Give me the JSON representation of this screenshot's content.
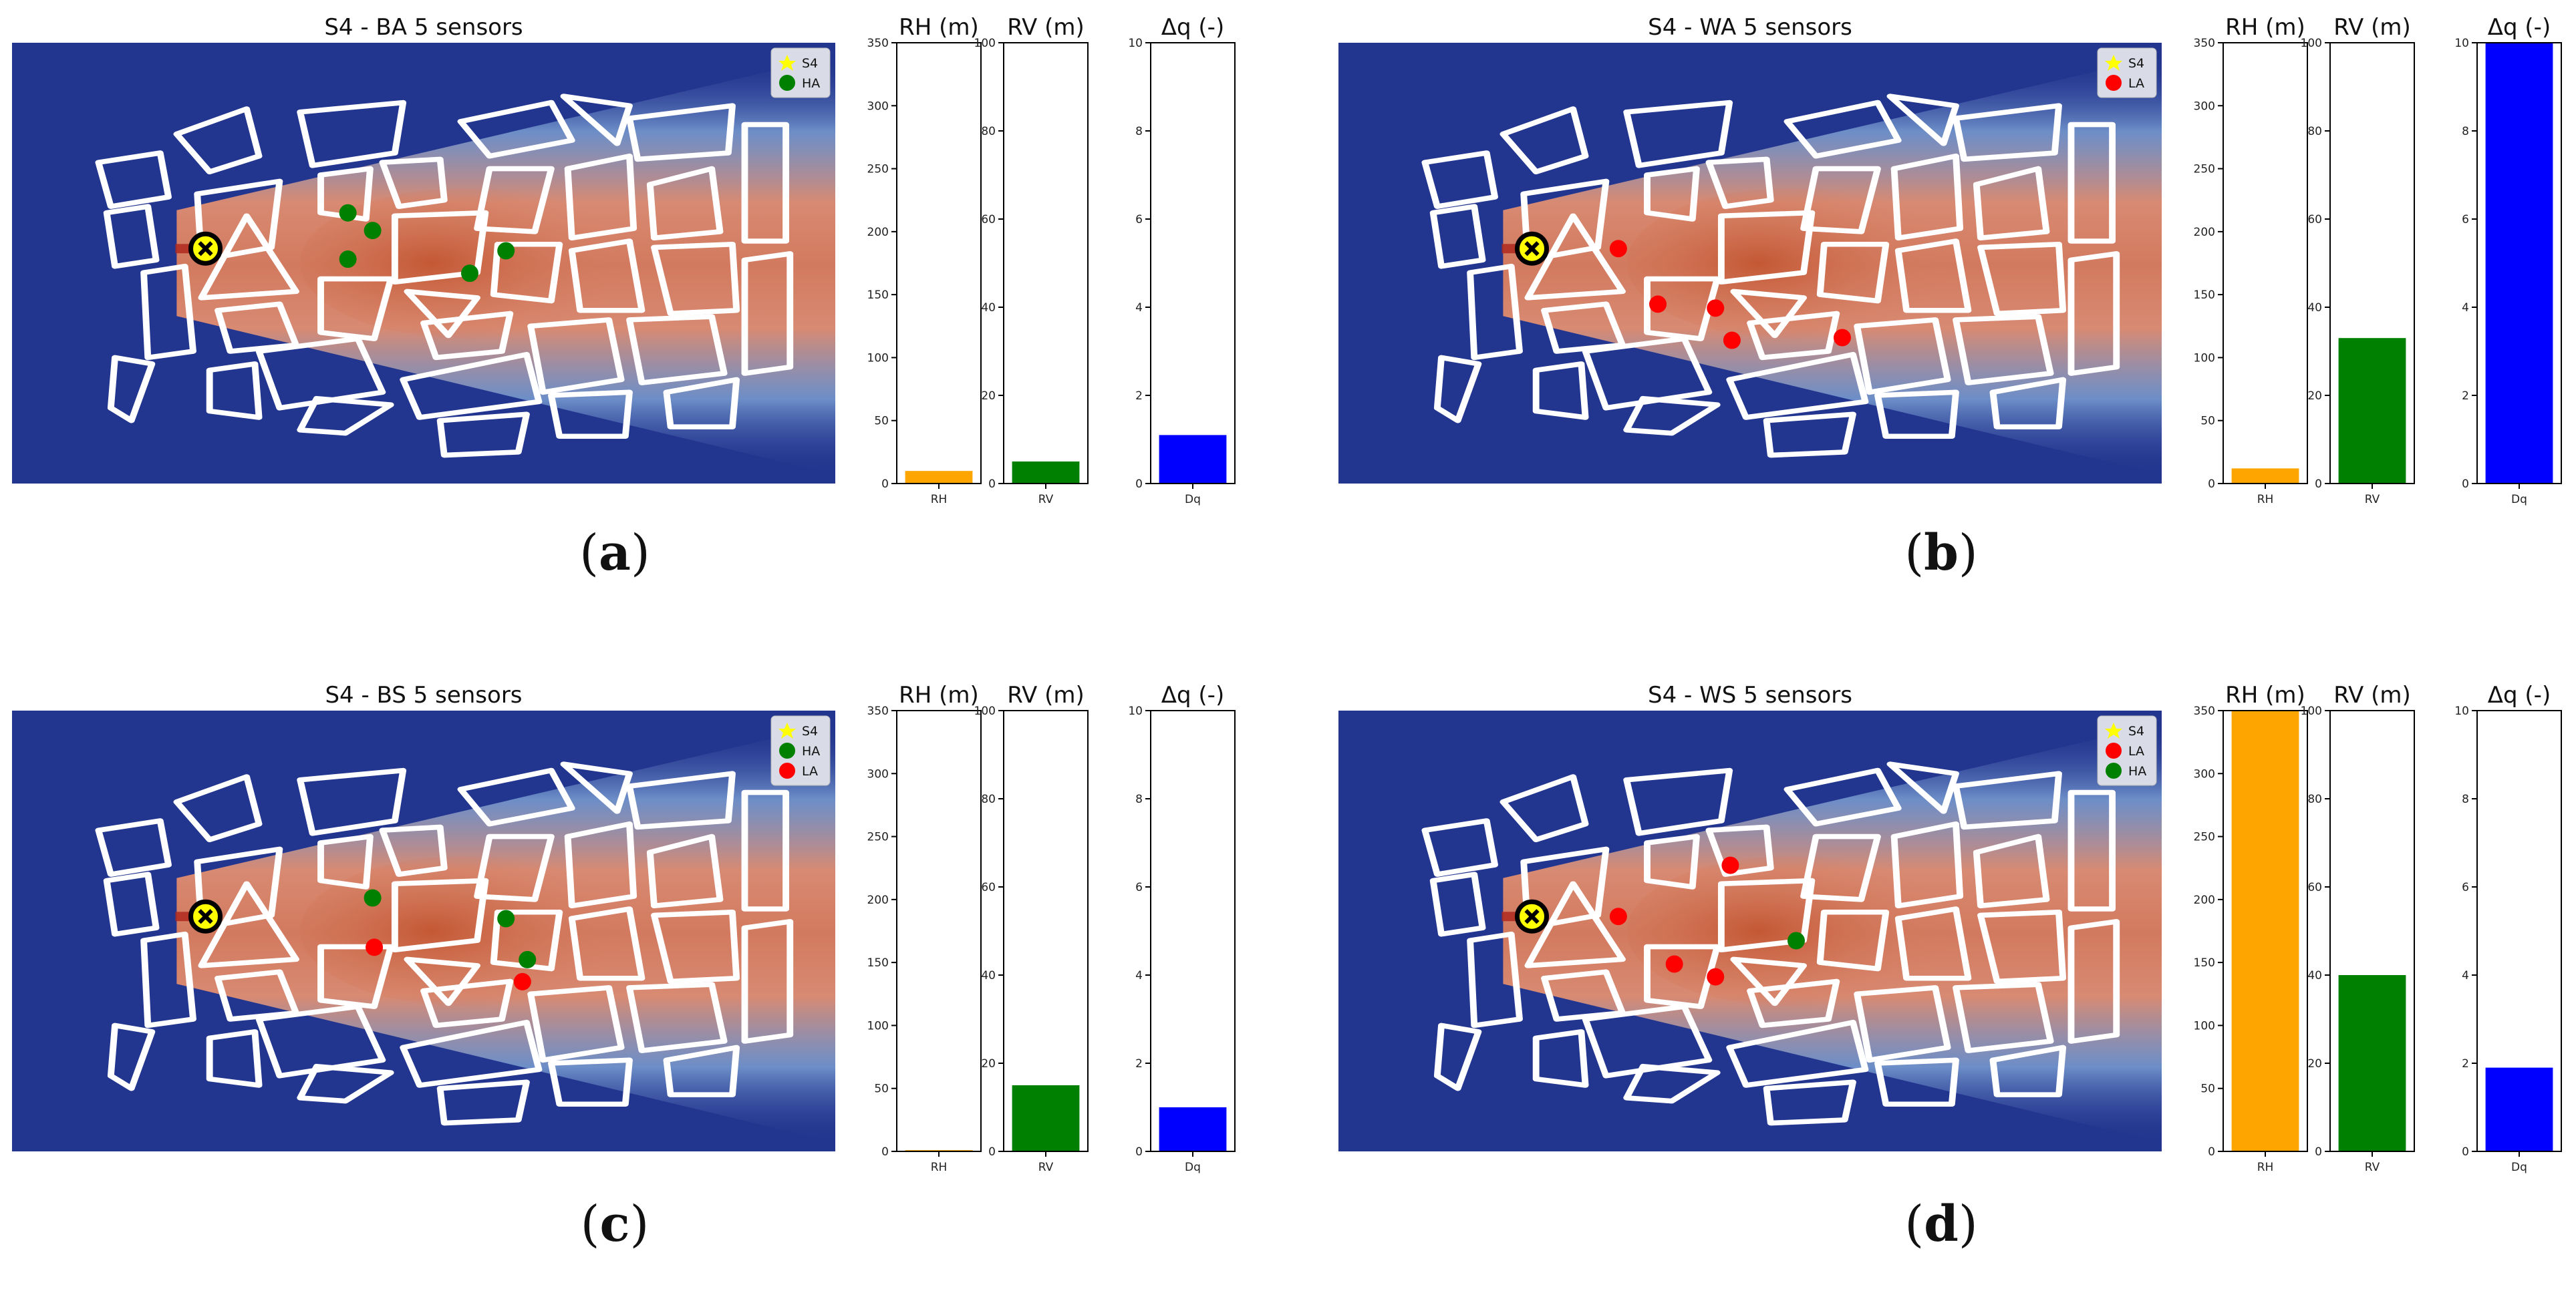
{
  "colors": {
    "background_blue": "#23368f",
    "plume_orange": "#d98266",
    "source_yellow": "#ffff00",
    "ha_green": "#008000",
    "la_red": "#ff0000",
    "rh_bar": "#ffa500",
    "rv_bar": "#008000",
    "dq_bar": "#0000ff"
  },
  "chart_data": [
    {
      "type": "bar",
      "panel": "(a)",
      "label_open": "(",
      "label_letter": "a",
      "label_close": ")",
      "map_title": "S4 - BA 5 sensors",
      "legend": [
        {
          "label": "S4",
          "marker": "star",
          "color": "#ffff00"
        },
        {
          "label": "HA",
          "marker": "circle",
          "color": "#008000"
        }
      ],
      "sensors": [
        {
          "group": "HA",
          "x": 0.408,
          "y": 0.386
        },
        {
          "group": "HA",
          "x": 0.438,
          "y": 0.426
        },
        {
          "group": "HA",
          "x": 0.408,
          "y": 0.491
        },
        {
          "group": "HA",
          "x": 0.556,
          "y": 0.523
        },
        {
          "group": "HA",
          "x": 0.6,
          "y": 0.472
        }
      ],
      "bars": [
        {
          "title": "RH (m)",
          "category": "RH",
          "value": 10,
          "ylim": [
            0,
            350
          ],
          "ticks": [
            0,
            50,
            100,
            150,
            200,
            250,
            300,
            350
          ],
          "color": "#ffa500"
        },
        {
          "title": "RV (m)",
          "category": "RV",
          "value": 5,
          "ylim": [
            0,
            100
          ],
          "ticks": [
            0,
            20,
            40,
            60,
            80,
            100
          ],
          "color": "#008000"
        },
        {
          "title": "Δq (-)",
          "category": "Dq",
          "value": 1.1,
          "ylim": [
            0,
            10
          ],
          "ticks": [
            0,
            2,
            4,
            6,
            8,
            10
          ],
          "color": "#0000ff"
        }
      ]
    },
    {
      "type": "bar",
      "panel": "(b)",
      "label_open": "(",
      "label_letter": "b",
      "label_close": ")",
      "map_title": "S4 - WA 5 sensors",
      "legend": [
        {
          "label": "S4",
          "marker": "star",
          "color": "#ffff00"
        },
        {
          "label": "LA",
          "marker": "circle",
          "color": "#ff0000"
        }
      ],
      "sensors": [
        {
          "group": "LA",
          "x": 0.34,
          "y": 0.467
        },
        {
          "group": "LA",
          "x": 0.388,
          "y": 0.593
        },
        {
          "group": "LA",
          "x": 0.458,
          "y": 0.602
        },
        {
          "group": "LA",
          "x": 0.478,
          "y": 0.675
        },
        {
          "group": "LA",
          "x": 0.612,
          "y": 0.669
        }
      ],
      "bars": [
        {
          "title": "RH (m)",
          "category": "RH",
          "value": 12,
          "ylim": [
            0,
            350
          ],
          "ticks": [
            0,
            50,
            100,
            150,
            200,
            250,
            300,
            350
          ],
          "color": "#ffa500"
        },
        {
          "title": "RV (m)",
          "category": "RV",
          "value": 33,
          "ylim": [
            0,
            100
          ],
          "ticks": [
            0,
            20,
            40,
            60,
            80,
            100
          ],
          "color": "#008000"
        },
        {
          "title": "Δq (-)",
          "category": "Dq",
          "value": 10,
          "ylim": [
            0,
            10
          ],
          "ticks": [
            0,
            2,
            4,
            6,
            8,
            10
          ],
          "color": "#0000ff"
        }
      ]
    },
    {
      "type": "bar",
      "panel": "(c)",
      "label_open": "(",
      "label_letter": "c",
      "label_close": ")",
      "map_title": "S4 - BS 5 sensors",
      "legend": [
        {
          "label": "S4",
          "marker": "star",
          "color": "#ffff00"
        },
        {
          "label": "HA",
          "marker": "circle",
          "color": "#008000"
        },
        {
          "label": "LA",
          "marker": "circle",
          "color": "#ff0000"
        }
      ],
      "sensors": [
        {
          "group": "HA",
          "x": 0.438,
          "y": 0.425
        },
        {
          "group": "HA",
          "x": 0.6,
          "y": 0.472
        },
        {
          "group": "HA",
          "x": 0.626,
          "y": 0.565
        },
        {
          "group": "LA",
          "x": 0.44,
          "y": 0.537
        },
        {
          "group": "LA",
          "x": 0.62,
          "y": 0.615
        }
      ],
      "bars": [
        {
          "title": "RH (m)",
          "category": "RH",
          "value": 1,
          "ylim": [
            0,
            350
          ],
          "ticks": [
            0,
            50,
            100,
            150,
            200,
            250,
            300,
            350
          ],
          "color": "#ffa500"
        },
        {
          "title": "RV (m)",
          "category": "RV",
          "value": 15,
          "ylim": [
            0,
            100
          ],
          "ticks": [
            0,
            20,
            40,
            60,
            80,
            100
          ],
          "color": "#008000"
        },
        {
          "title": "Δq (-)",
          "category": "Dq",
          "value": 1.0,
          "ylim": [
            0,
            10
          ],
          "ticks": [
            0,
            2,
            4,
            6,
            8,
            10
          ],
          "color": "#0000ff"
        }
      ]
    },
    {
      "type": "bar",
      "panel": "(d)",
      "label_open": "(",
      "label_letter": "d",
      "label_close": ")",
      "map_title": "S4 - WS 5 sensors",
      "legend": [
        {
          "label": "S4",
          "marker": "star",
          "color": "#ffff00"
        },
        {
          "label": "LA",
          "marker": "circle",
          "color": "#ff0000"
        },
        {
          "label": "HA",
          "marker": "circle",
          "color": "#008000"
        }
      ],
      "sensors": [
        {
          "group": "LA",
          "x": 0.34,
          "y": 0.467
        },
        {
          "group": "LA",
          "x": 0.476,
          "y": 0.351
        },
        {
          "group": "LA",
          "x": 0.408,
          "y": 0.575
        },
        {
          "group": "LA",
          "x": 0.458,
          "y": 0.604
        },
        {
          "group": "HA",
          "x": 0.556,
          "y": 0.522
        }
      ],
      "bars": [
        {
          "title": "RH (m)",
          "category": "RH",
          "value": 350,
          "ylim": [
            0,
            350
          ],
          "ticks": [
            0,
            50,
            100,
            150,
            200,
            250,
            300,
            350
          ],
          "color": "#ffa500"
        },
        {
          "title": "RV (m)",
          "category": "RV",
          "value": 40,
          "ylim": [
            0,
            100
          ],
          "ticks": [
            0,
            20,
            40,
            60,
            80,
            100
          ],
          "color": "#008000"
        },
        {
          "title": "Δq (-)",
          "category": "Dq",
          "value": 1.9,
          "ylim": [
            0,
            10
          ],
          "ticks": [
            0,
            2,
            4,
            6,
            8,
            10
          ],
          "color": "#0000ff"
        }
      ]
    }
  ]
}
